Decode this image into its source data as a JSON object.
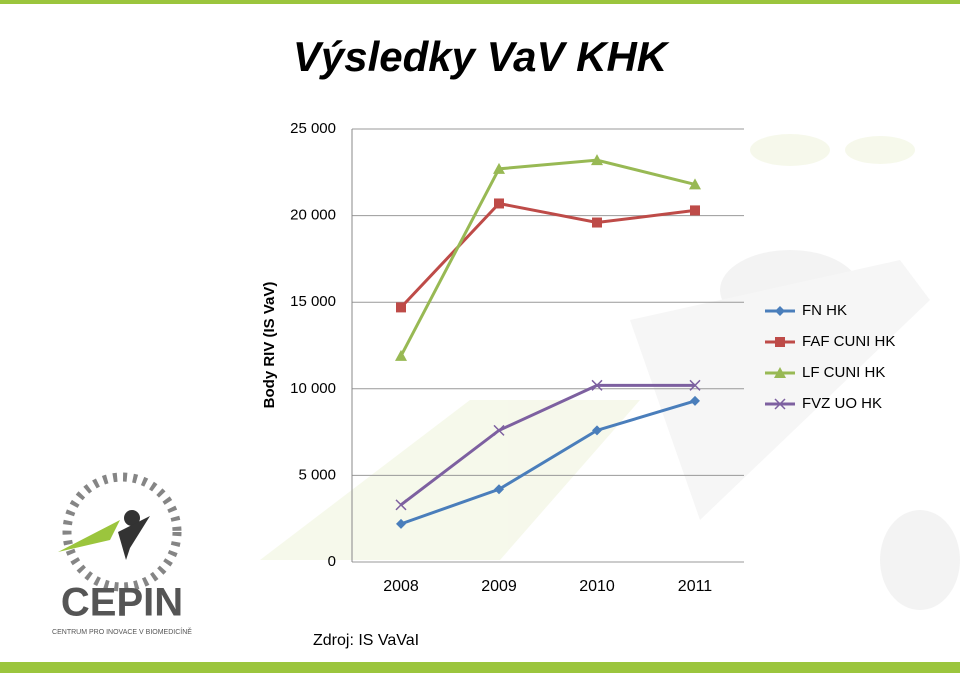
{
  "chart_data": {
    "type": "line",
    "title": "Výsledky VaV KHK",
    "y_label": "Body RIV (IS VaV)",
    "source": "Zdroj: IS VaVaI",
    "categories": [
      "2008",
      "2009",
      "2010",
      "2011"
    ],
    "series": [
      {
        "name": "FN HK",
        "color": "#4a7ebb",
        "marker": "diamond",
        "values": [
          2200,
          4200,
          7600,
          9300
        ]
      },
      {
        "name": "FAF CUNI HK",
        "color": "#be4b48",
        "marker": "square",
        "values": [
          14700,
          20700,
          19600,
          20300
        ]
      },
      {
        "name": "LF CUNI HK",
        "color": "#98b954",
        "marker": "triangle",
        "values": [
          11900,
          22700,
          23200,
          21800
        ]
      },
      {
        "name": "FVZ UO HK",
        "color": "#7d60a0",
        "marker": "x",
        "values": [
          3300,
          7600,
          10200,
          10200
        ]
      }
    ],
    "ylim": [
      0,
      25000
    ],
    "yticks": [
      0,
      {
        "value": 5000,
        "label": "5 000"
      },
      {
        "value": 10000,
        "label": "10 000"
      },
      {
        "value": 15000,
        "label": "15 000"
      },
      {
        "value": 20000,
        "label": "20 000"
      },
      {
        "value": 25000,
        "label": "25 000"
      }
    ],
    "grid": true,
    "legend": "right"
  },
  "logo": {
    "name": "CEPIN",
    "subtitle": "CENTRUM PRO INOVACE V BIOMEDICÍNĚ"
  }
}
